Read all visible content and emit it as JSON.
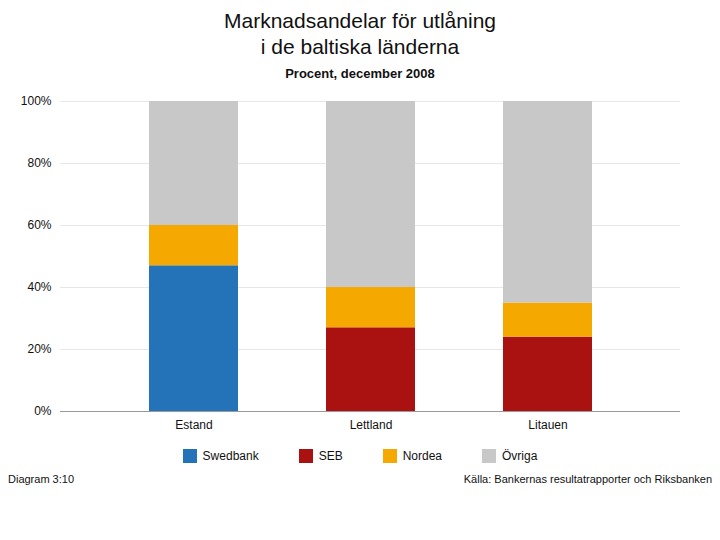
{
  "chart_data": {
    "type": "bar",
    "stacked": true,
    "title": "Marknadsandelar för utlåning\ni de baltiska länderna",
    "subtitle": "Procent, december 2008",
    "categories": [
      "Estand",
      "Lettland",
      "Litauen"
    ],
    "series": [
      {
        "name": "Swedbank",
        "color": "#2472b8",
        "values": [
          47,
          0,
          0
        ]
      },
      {
        "name": "SEB",
        "color": "#aa1111",
        "values": [
          0,
          27,
          24
        ]
      },
      {
        "name": "Nordea",
        "color": "#f5a800",
        "values": [
          13,
          13,
          11
        ]
      },
      {
        "name": "Övriga",
        "color": "#c8c8c8",
        "values": [
          40,
          60,
          65
        ]
      }
    ],
    "ylim": [
      0,
      100
    ],
    "yticks": [
      {
        "value": 0,
        "label": "0%"
      },
      {
        "value": 20,
        "label": "20%"
      },
      {
        "value": 40,
        "label": "40%"
      },
      {
        "value": 60,
        "label": "60%"
      },
      {
        "value": 80,
        "label": "80%"
      },
      {
        "value": 100,
        "label": "100%"
      }
    ],
    "grid": true,
    "legend": "bottom",
    "annotations": [
      "Diagram 3:10",
      "Källa: Bankernas resultatrapporter och Riksbanken"
    ]
  }
}
